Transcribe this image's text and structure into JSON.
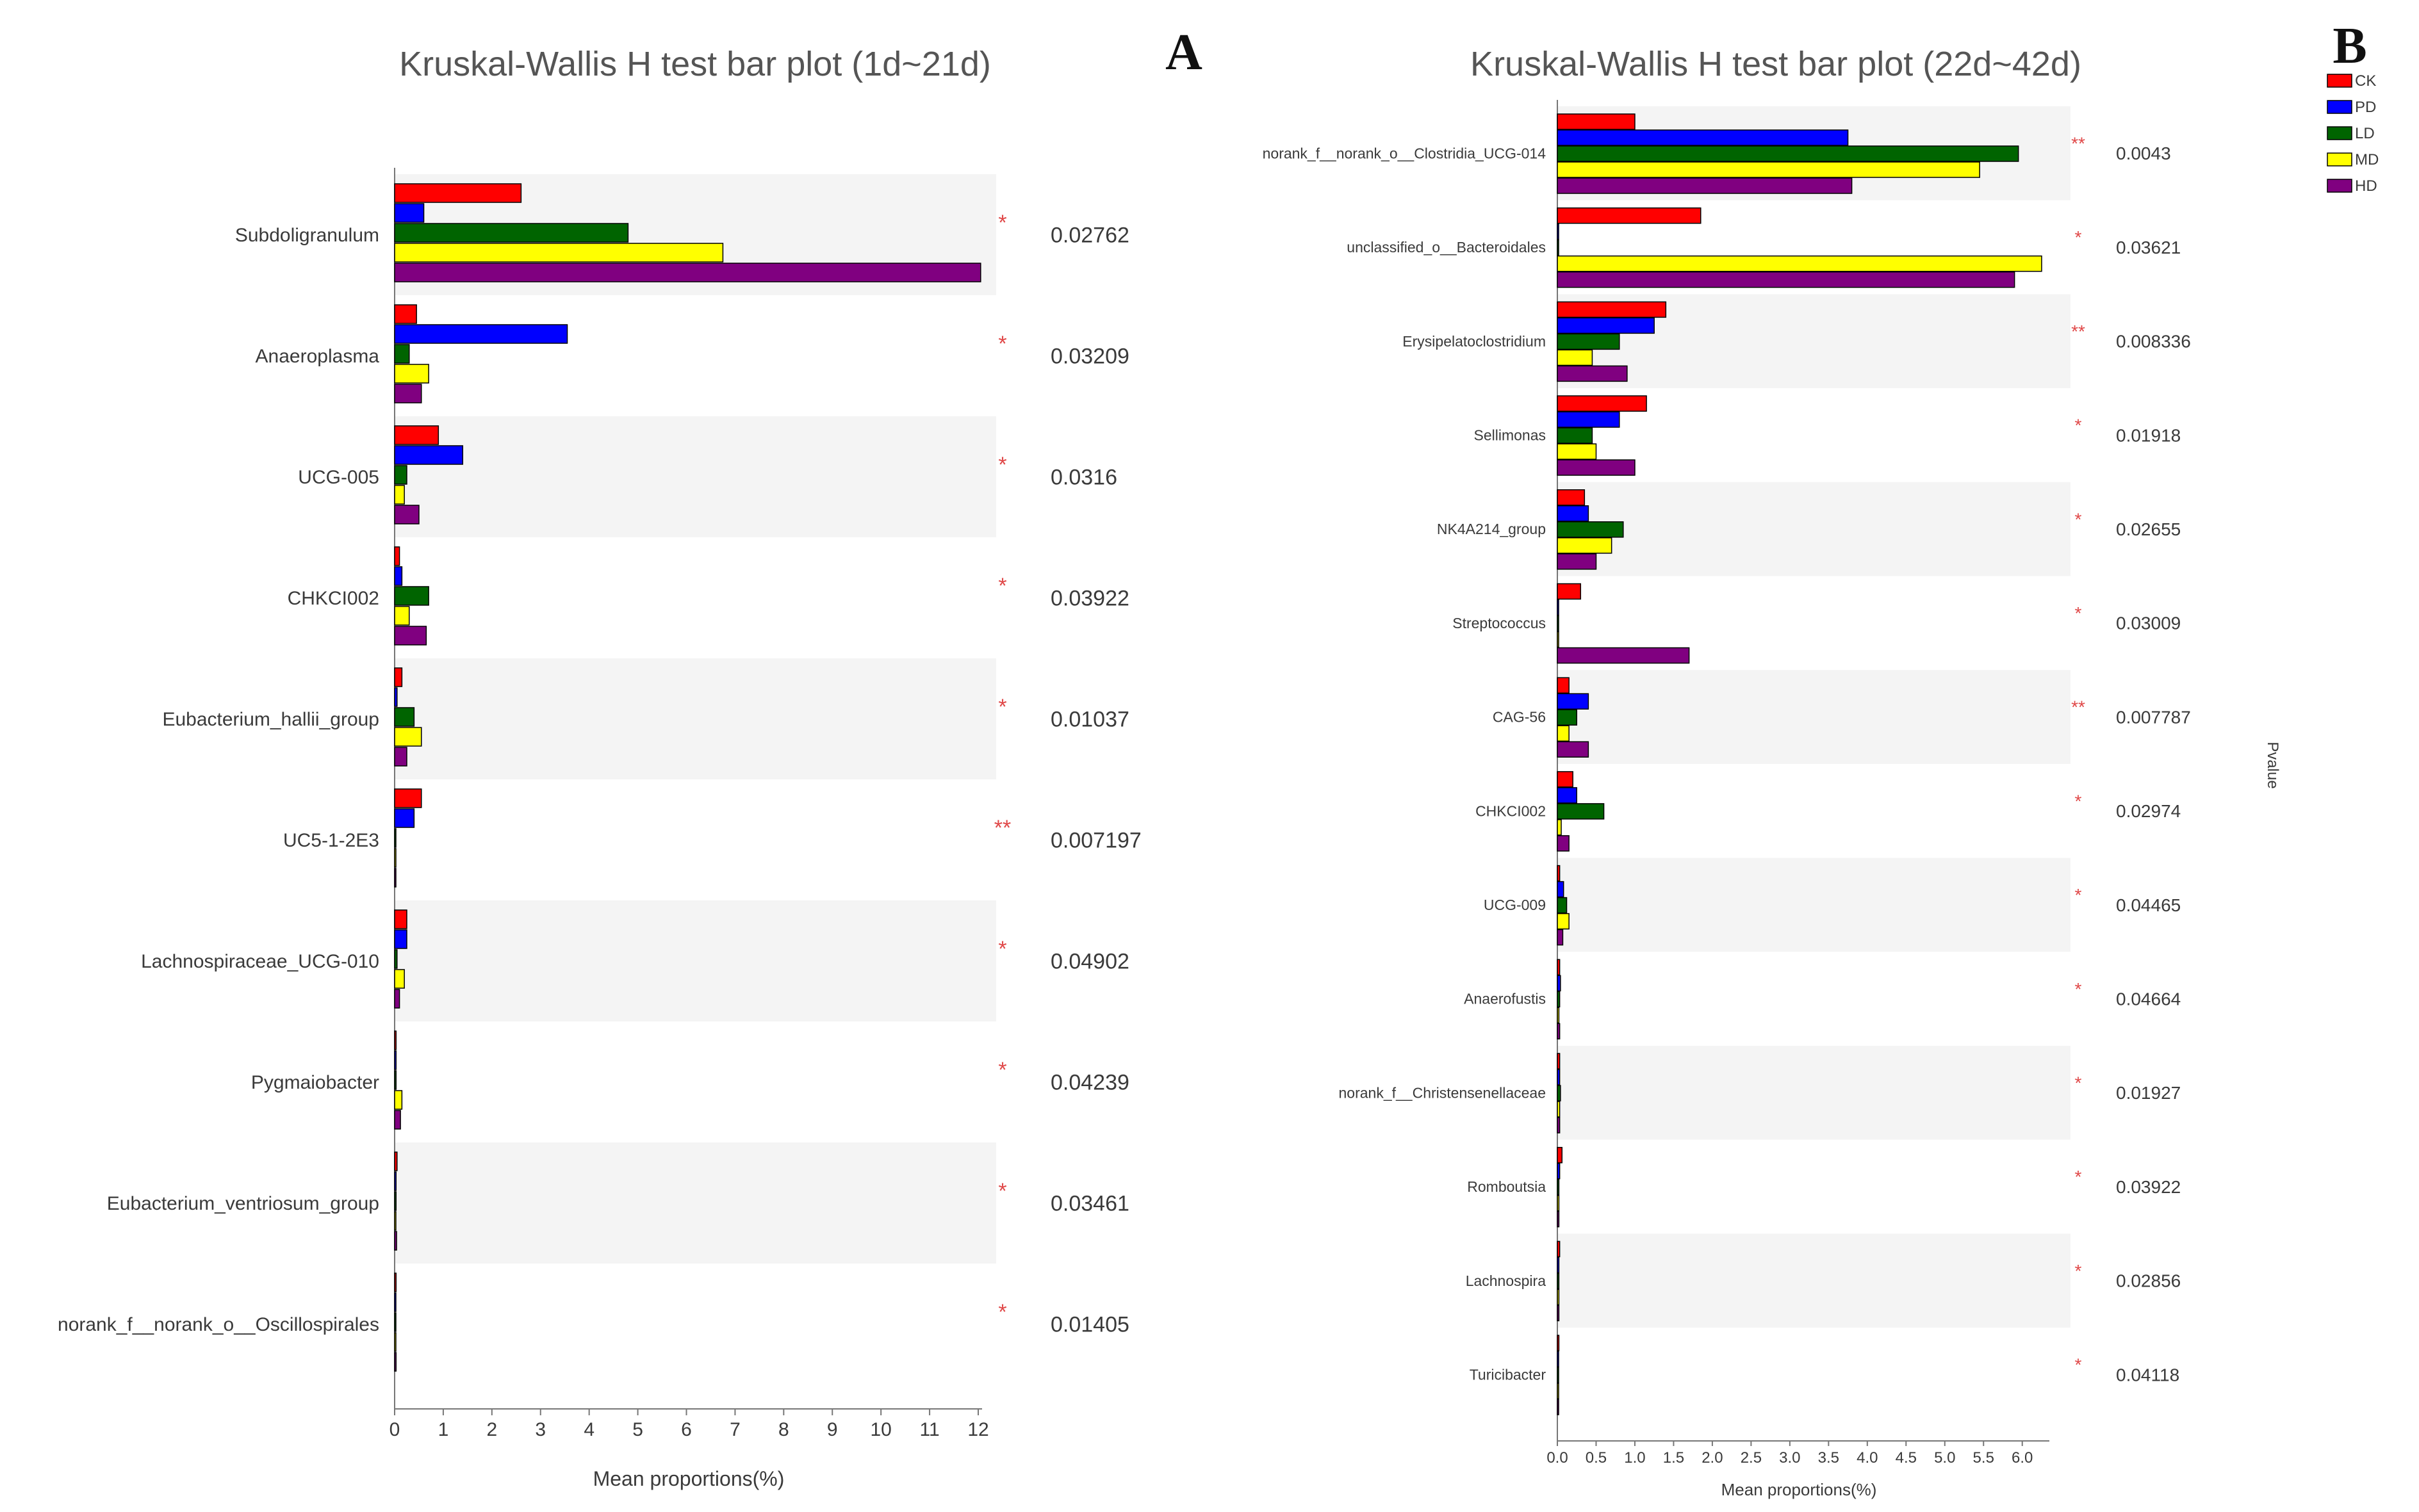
{
  "colors": {
    "CK": "#ff0000",
    "PD": "#0000ff",
    "LD": "#006400",
    "MD": "#ffff00",
    "HD": "#800080",
    "band": "#f4f4f4",
    "star": "#e04848"
  },
  "chart_data": [
    {
      "panel_label": "A",
      "type": "bar",
      "orientation": "horizontal",
      "title": "Kruskal-Wallis H test bar plot (1d~21d)",
      "xlabel": "Mean proportions(%)",
      "xlim": [
        0,
        12
      ],
      "xticks": [
        "0",
        "1",
        "2",
        "3",
        "4",
        "5",
        "6",
        "7",
        "8",
        "9",
        "10",
        "11",
        "12"
      ],
      "series_names": [
        "CK",
        "PD",
        "LD",
        "MD",
        "HD"
      ],
      "categories": [
        {
          "name": "Subdoligranulum",
          "values": [
            2.6,
            0.6,
            4.8,
            6.75,
            12.05
          ],
          "sig": "*",
          "pvalue": "0.02762"
        },
        {
          "name": "Anaeroplasma",
          "values": [
            0.45,
            3.55,
            0.3,
            0.7,
            0.55
          ],
          "sig": "*",
          "pvalue": "0.03209"
        },
        {
          "name": "UCG-005",
          "values": [
            0.9,
            1.4,
            0.25,
            0.2,
            0.5
          ],
          "sig": "*",
          "pvalue": "0.0316"
        },
        {
          "name": "CHKCI002",
          "values": [
            0.1,
            0.15,
            0.7,
            0.3,
            0.65
          ],
          "sig": "*",
          "pvalue": "0.03922"
        },
        {
          "name": "Eubacterium_hallii_group",
          "values": [
            0.15,
            0.05,
            0.4,
            0.55,
            0.25
          ],
          "sig": "*",
          "pvalue": "0.01037"
        },
        {
          "name": "UC5-1-2E3",
          "values": [
            0.55,
            0.4,
            0.02,
            0.02,
            0.02
          ],
          "sig": "**",
          "pvalue": "0.007197"
        },
        {
          "name": "Lachnospiraceae_UCG-010",
          "values": [
            0.25,
            0.25,
            0.05,
            0.2,
            0.1
          ],
          "sig": "*",
          "pvalue": "0.04902"
        },
        {
          "name": "Pygmaiobacter",
          "values": [
            0.03,
            0.03,
            0.03,
            0.15,
            0.12
          ],
          "sig": "*",
          "pvalue": "0.04239"
        },
        {
          "name": "Eubacterium_ventriosum_group",
          "values": [
            0.05,
            0.03,
            0.03,
            0.02,
            0.04
          ],
          "sig": "*",
          "pvalue": "0.03461"
        },
        {
          "name": "norank_f__norank_o__Oscillospirales",
          "values": [
            0.03,
            0.02,
            0.02,
            0.02,
            0.03
          ],
          "sig": "*",
          "pvalue": "0.01405"
        }
      ]
    },
    {
      "panel_label": "B",
      "type": "bar",
      "orientation": "horizontal",
      "title": "Kruskal-Wallis H test bar plot (22d~42d)",
      "xlabel": "Mean proportions(%)",
      "right_axis_label": "Pvalue",
      "xlim": [
        0,
        6.3
      ],
      "xticks": [
        "0.0",
        "0.5",
        "1.0",
        "1.5",
        "2.0",
        "2.5",
        "3.0",
        "3.5",
        "4.0",
        "4.5",
        "5.0",
        "5.5",
        "6.0"
      ],
      "legend": [
        "CK",
        "PD",
        "LD",
        "MD",
        "HD"
      ],
      "series_names": [
        "CK",
        "PD",
        "LD",
        "MD",
        "HD"
      ],
      "categories": [
        {
          "name": "norank_f__norank_o__Clostridia_UCG-014",
          "values": [
            1.0,
            3.75,
            5.95,
            5.45,
            3.8
          ],
          "sig": "**",
          "pvalue": "0.0043"
        },
        {
          "name": "unclassified_o__Bacteroidales",
          "values": [
            1.85,
            0.0,
            0.0,
            6.25,
            5.9
          ],
          "sig": "*",
          "pvalue": "0.03621"
        },
        {
          "name": "Erysipelatoclostridium",
          "values": [
            1.4,
            1.25,
            0.8,
            0.45,
            0.9
          ],
          "sig": "**",
          "pvalue": "0.008336"
        },
        {
          "name": "Sellimonas",
          "values": [
            1.15,
            0.8,
            0.45,
            0.5,
            1.0
          ],
          "sig": "*",
          "pvalue": "0.01918"
        },
        {
          "name": "NK4A214_group",
          "values": [
            0.35,
            0.4,
            0.85,
            0.7,
            0.5
          ],
          "sig": "*",
          "pvalue": "0.02655"
        },
        {
          "name": "Streptococcus",
          "values": [
            0.3,
            0.0,
            0.0,
            0.0,
            1.7
          ],
          "sig": "*",
          "pvalue": "0.03009"
        },
        {
          "name": "CAG-56",
          "values": [
            0.15,
            0.4,
            0.25,
            0.15,
            0.4
          ],
          "sig": "**",
          "pvalue": "0.007787"
        },
        {
          "name": "CHKCI002",
          "values": [
            0.2,
            0.25,
            0.6,
            0.05,
            0.15
          ],
          "sig": "*",
          "pvalue": "0.02974"
        },
        {
          "name": "UCG-009",
          "values": [
            0.03,
            0.08,
            0.12,
            0.15,
            0.07
          ],
          "sig": "*",
          "pvalue": "0.04465"
        },
        {
          "name": "Anaerofustis",
          "values": [
            0.03,
            0.04,
            0.03,
            0.02,
            0.03
          ],
          "sig": "*",
          "pvalue": "0.04664"
        },
        {
          "name": "norank_f__Christensenellaceae",
          "values": [
            0.03,
            0.03,
            0.04,
            0.03,
            0.03
          ],
          "sig": "*",
          "pvalue": "0.01927"
        },
        {
          "name": "Romboutsia",
          "values": [
            0.06,
            0.03,
            0.02,
            0.02,
            0.02
          ],
          "sig": "*",
          "pvalue": "0.03922"
        },
        {
          "name": "Lachnospira",
          "values": [
            0.03,
            0.02,
            0.02,
            0.02,
            0.02
          ],
          "sig": "*",
          "pvalue": "0.02856"
        },
        {
          "name": "Turicibacter",
          "values": [
            0.02,
            0.01,
            0.01,
            0.01,
            0.01
          ],
          "sig": "*",
          "pvalue": "0.04118"
        }
      ]
    }
  ]
}
